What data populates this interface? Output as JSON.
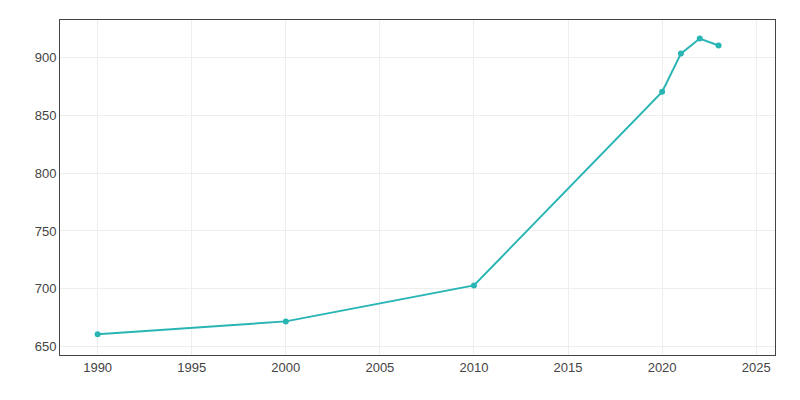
{
  "chart_data": {
    "type": "line",
    "x": [
      1990,
      2000,
      2010,
      2020,
      2021,
      2022,
      2023
    ],
    "values": [
      661,
      672,
      703,
      870,
      903,
      916,
      910
    ],
    "color": "#2ab5b5",
    "marker": "circle",
    "xlim": [
      1988,
      2026
    ],
    "xticks": [
      1990,
      1995,
      2000,
      2005,
      2010,
      2015,
      2020,
      2025
    ],
    "ylim": [
      643,
      932
    ],
    "yticks": [
      650,
      700,
      750,
      800,
      850,
      900
    ],
    "grid": true
  }
}
